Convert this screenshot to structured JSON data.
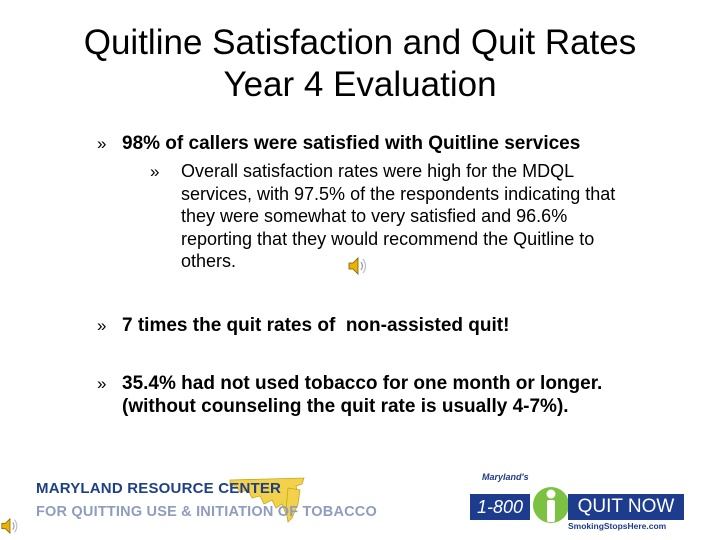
{
  "title": {
    "line1": "Quitline Satisfaction and Quit Rates",
    "line2": "Year 4 Evaluation"
  },
  "bullets": {
    "marker": "»",
    "item1": "98% of callers were satisfied with Quitline services",
    "sub1": {
      "line1": "Overall satisfaction rates were high for the MDQL",
      "line2": "services, with 97.5% of the respondents indicating that",
      "line3": "they were somewhat to very satisfied and 96.6%",
      "line4": "reporting that they would recommend the Quitline to",
      "line5": "others."
    },
    "item2": "7 times the quit rates of  non-assisted quit!",
    "item3": {
      "line1": "35.4% had not used tobacco for one month or longer.",
      "line2": "(without counseling the quit rate is usually 4-7%)."
    }
  },
  "logo_left": {
    "line1": "MARYLAND RESOURCE CENTER",
    "line2": "FOR QUITTING USE & INITIATION OF TOBACCO",
    "text_color": "#1f3f86",
    "map_color": "#f2d24a"
  },
  "logo_right": {
    "top_text": "Maryland's",
    "number": "1-800",
    "quit": "QUIT NOW",
    "url": "SmokingStopsHere.com",
    "brand_blue": "#1d3c8e",
    "brand_green": "#7cc242"
  },
  "icons": [
    "speaker-icon"
  ]
}
